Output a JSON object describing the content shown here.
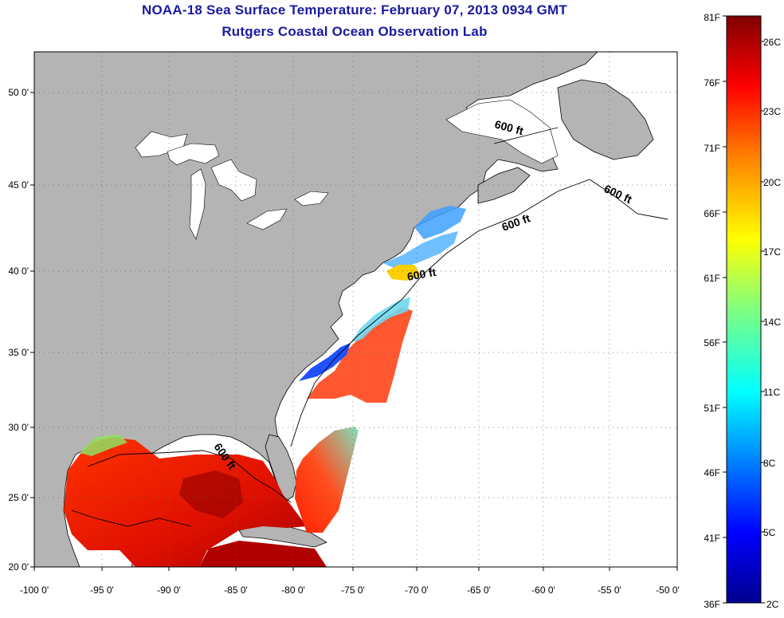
{
  "title": "NOAA-18 Sea Surface Temperature:  February 07, 2013 0934 GMT",
  "subtitle": "Rutgers Coastal Ocean Observation Lab",
  "map": {
    "lon_ticks": [
      "-100 0'",
      "-95 0'",
      "-90 0'",
      "-85 0'",
      "-80 0'",
      "-75 0'",
      "-70 0'",
      "-65 0'",
      "-60 0'",
      "-55 0'",
      "-50 0'"
    ],
    "lat_ticks": [
      "50 0'",
      "45 0'",
      "40 0'",
      "35 0'",
      "30 0'",
      "25 0'",
      "20 0'"
    ],
    "contour_labels": [
      "600 ft",
      "600 ft",
      "600 ft",
      "600 ft",
      "600 ft"
    ],
    "colors": {
      "land": "#b4b4b4",
      "ocean": "#ffffff",
      "grid": "#888888"
    }
  },
  "colorbar": {
    "fahrenheit": [
      "81F",
      "76F",
      "71F",
      "66F",
      "61F",
      "56F",
      "51F",
      "46F",
      "41F",
      "36F"
    ],
    "celsius": [
      "26C",
      "23C",
      "20C",
      "17C",
      "14C",
      "11C",
      "8C",
      "5C",
      "2C"
    ],
    "colormap": [
      "#00008f",
      "#0000ff",
      "#00bfff",
      "#00ffff",
      "#80ff80",
      "#ffff00",
      "#ff8000",
      "#ff0000",
      "#800000"
    ]
  }
}
